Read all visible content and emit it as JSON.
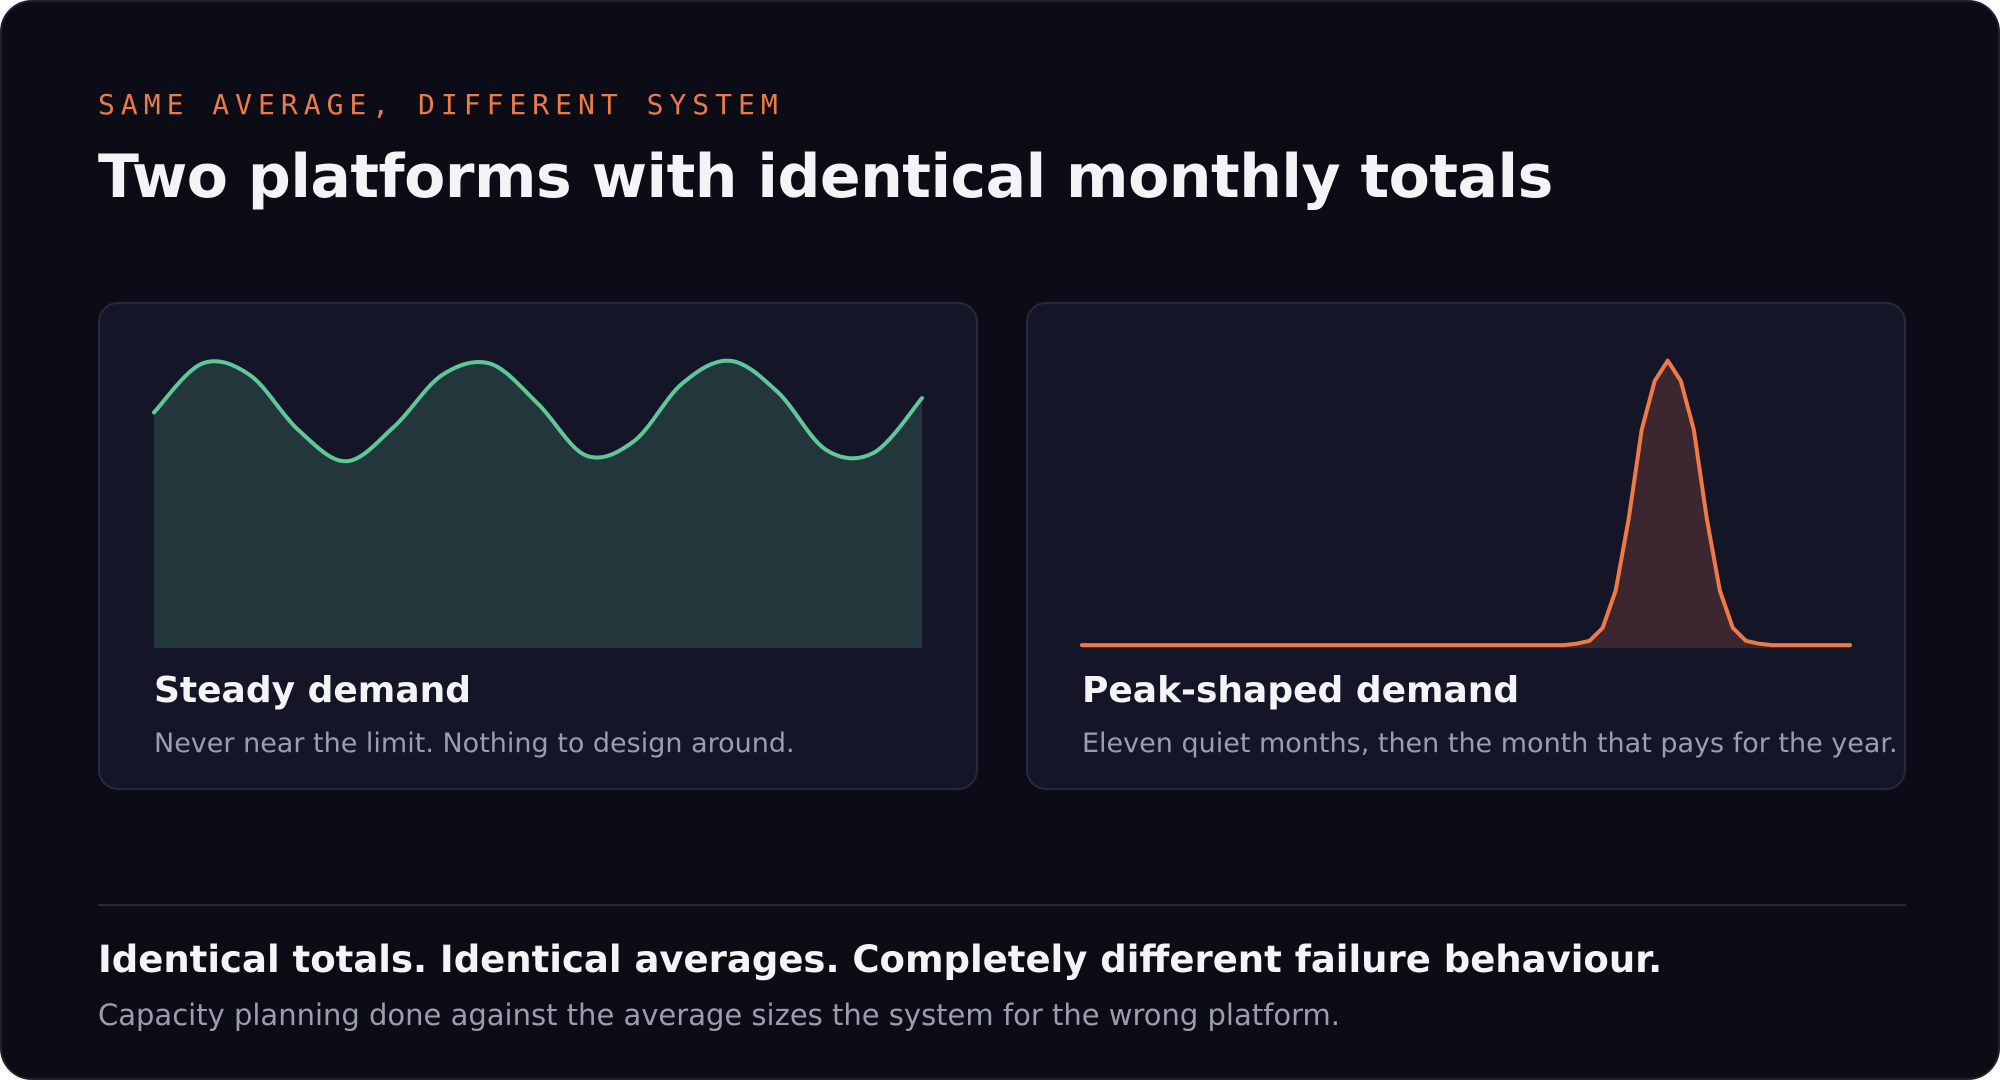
{
  "header": {
    "eyebrow": "SAME AVERAGE, DIFFERENT SYSTEM",
    "title": "Two platforms with identical monthly totals"
  },
  "cards": [
    {
      "title": "Steady demand",
      "subtitle": "Never near the limit. Nothing to design around."
    },
    {
      "title": "Peak-shaped demand",
      "subtitle": "Eleven quiet months, then the month that pays for the year."
    }
  ],
  "footer": {
    "headline": "Identical totals. Identical averages. Completely different failure behaviour.",
    "subtext": "Capacity planning done against the average sizes the system for the wrong platform."
  },
  "colors": {
    "background": "#0b0c16",
    "card": "#141628",
    "accent_orange": "#ec7b4a",
    "steady_line": "#5ec896",
    "steady_fill": "#22363b",
    "peak_line": "#ee7a45",
    "peak_fill": "#3c2630"
  },
  "chart_data": [
    {
      "type": "area",
      "series": [
        {
          "values": [
            0.82,
            0.99,
            0.95,
            0.76,
            0.65,
            0.77,
            0.95,
            0.99,
            0.85,
            0.67,
            0.72,
            0.92,
            1.0,
            0.89,
            0.69,
            0.68,
            0.87
          ]
        }
      ],
      "ylim": [
        0,
        1.1
      ],
      "grid": false,
      "axes": false
    },
    {
      "type": "area",
      "series": [
        {
          "values": [
            0.01,
            0.01,
            0.01,
            0.01,
            0.01,
            0.01,
            0.01,
            0.01,
            0.01,
            0.01,
            0.01,
            0.01,
            0.01,
            0.01,
            0.01,
            0.01,
            0.01,
            0.01,
            0.01,
            0.01,
            0.01,
            0.01,
            0.01,
            0.01,
            0.01,
            0.01,
            0.01,
            0.01,
            0.01,
            0.01,
            0.01,
            0.01,
            0.01,
            0.01,
            0.01,
            0.01,
            0.01,
            0.01,
            0.015,
            0.025,
            0.07,
            0.2,
            0.45,
            0.76,
            0.93,
            1.0,
            0.93,
            0.76,
            0.45,
            0.2,
            0.07,
            0.025,
            0.015,
            0.01,
            0.01,
            0.01,
            0.01,
            0.01,
            0.01,
            0.01
          ]
        }
      ],
      "ylim": [
        0,
        1.1
      ],
      "grid": false,
      "axes": false
    }
  ]
}
